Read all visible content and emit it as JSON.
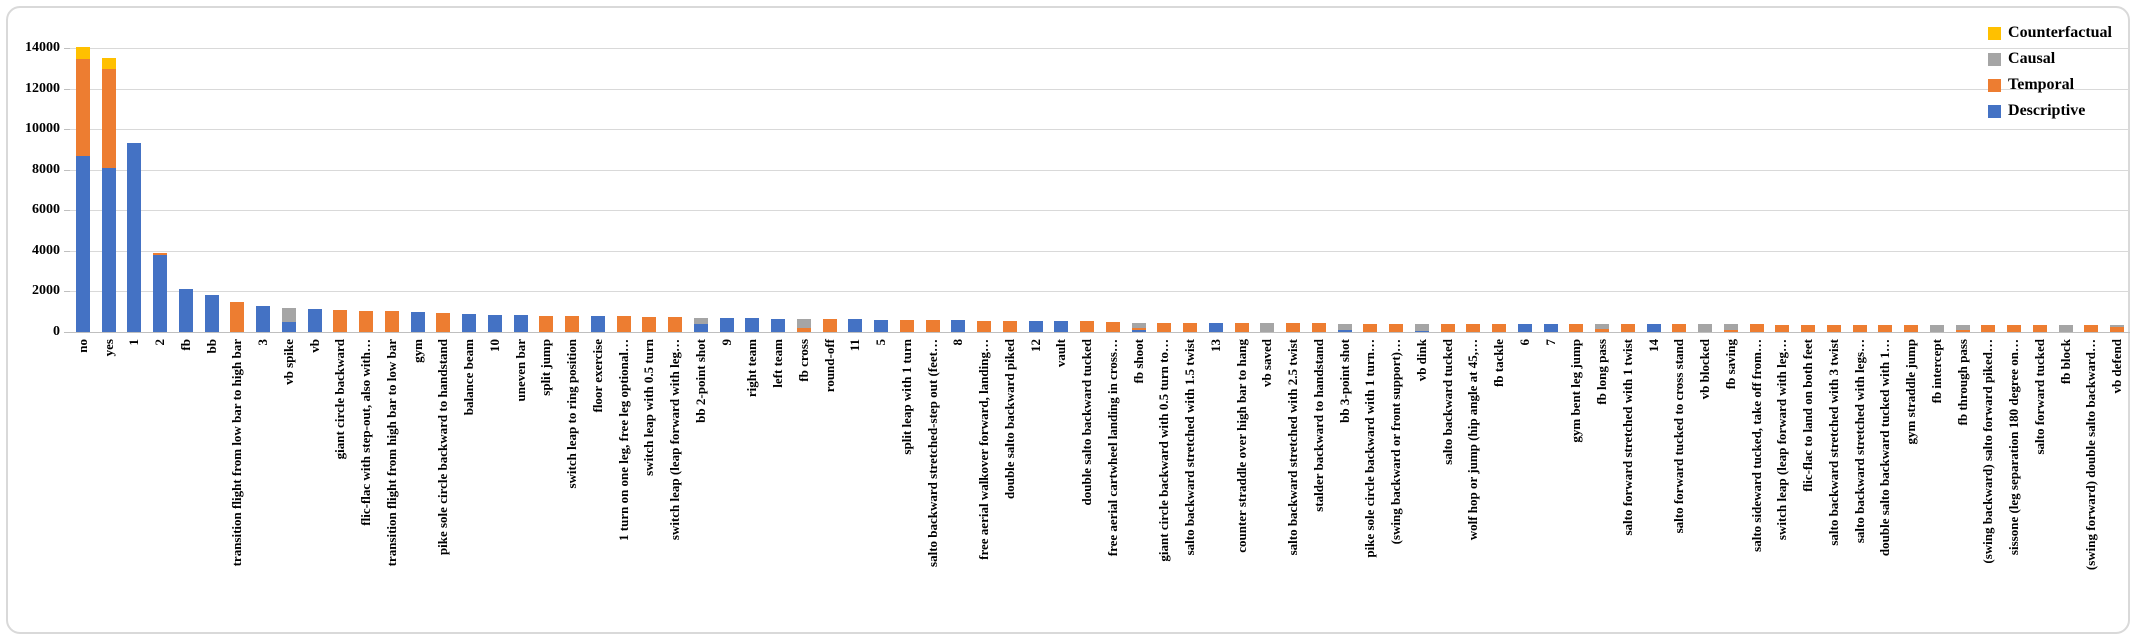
{
  "chart_data": {
    "type": "bar",
    "stacked": true,
    "title": "",
    "xlabel": "",
    "ylabel": "",
    "ylim": [
      0,
      14000
    ],
    "ytick_step": 2000,
    "grid": true,
    "legend": {
      "position": "top-right",
      "order_top_to_bottom": [
        "Counterfactual",
        "Causal",
        "Temporal",
        "Descriptive"
      ]
    },
    "categories": [
      "no",
      "yes",
      "1",
      "2",
      "fb",
      "bb",
      "transition flight from low bar to high bar",
      "3",
      "vb spike",
      "vb",
      "giant circle backward",
      "flic-flac with step-out, also with…",
      "transition flight from high bar to low bar",
      "gym",
      "pike sole circle backward to handstand",
      "balance beam",
      "10",
      "uneven bar",
      "split jump",
      "switch leap to ring position",
      "floor exercise",
      "1 turn on one leg, free leg optional…",
      "switch leap with 0.5 turn",
      "switch leap (leap forward with leg…",
      "bb 2-point shot",
      "9",
      "right team",
      "left team",
      "fb cross",
      "round-off",
      "11",
      "5",
      "split leap with 1 turn",
      "salto backward stretched-step out (feet…",
      "8",
      "free aerial walkover forward, landing…",
      "double salto backward piked",
      "12",
      "vault",
      "double salto backward tucked",
      "free aerial cartwheel landing in cross…",
      "fb shoot",
      "giant circle backward with 0.5 turn to…",
      "salto backward stretched with 1.5 twist",
      "13",
      "counter straddle over high bar to hang",
      "vb saved",
      "salto backward stretched with 2.5 twist",
      "stalder backward to handstand",
      "bb 3-point shot",
      "pike sole circle backward with 1 turn…",
      "(swing backward or front support)…",
      "vb dink",
      "salto backward tucked",
      "wolf hop or jump (hip angle at 45,…",
      "fb tackle",
      "6",
      "7",
      "gym bent leg jump",
      "fb long pass",
      "salto forward stretched with 1 twist",
      "14",
      "salto forward tucked to cross stand",
      "vb blocked",
      "fb saving",
      "salto sideward tucked, take off from…",
      "switch leap (leap forward with leg…",
      "flic-flac to land on both feet",
      "salto backward stretched with 3 twist",
      "salto backward stretched with legs…",
      "double salto backward tucked with 1…",
      "gym straddle jump",
      "fb intercept",
      "fb through pass",
      "(swing backward) salto forward piked…",
      "sissone (leg separation 180 degree on…",
      "salto forward tucked",
      "fb block",
      "(swing forward) double salto backward…",
      "vb defend"
    ],
    "series": [
      {
        "name": "Descriptive",
        "color": "#4472C4",
        "values": [
          8700,
          8100,
          9300,
          3800,
          2100,
          1800,
          0,
          1300,
          500,
          1150,
          0,
          0,
          0,
          1000,
          0,
          900,
          860,
          840,
          0,
          0,
          800,
          0,
          0,
          0,
          400,
          700,
          670,
          660,
          0,
          0,
          620,
          610,
          0,
          0,
          580,
          0,
          0,
          540,
          530,
          0,
          0,
          120,
          0,
          0,
          440,
          0,
          0,
          0,
          0,
          100,
          0,
          0,
          50,
          0,
          0,
          0,
          390,
          390,
          0,
          0,
          0,
          380,
          0,
          0,
          0,
          0,
          0,
          0,
          0,
          0,
          0,
          0,
          0,
          0,
          0,
          0,
          0,
          0,
          0,
          0
        ]
      },
      {
        "name": "Temporal",
        "color": "#ED7D31",
        "values": [
          4750,
          4850,
          0,
          100,
          0,
          0,
          1500,
          0,
          0,
          0,
          1100,
          1050,
          1030,
          0,
          930,
          0,
          0,
          0,
          800,
          790,
          0,
          780,
          760,
          750,
          0,
          0,
          0,
          0,
          200,
          640,
          0,
          0,
          600,
          590,
          0,
          560,
          550,
          0,
          0,
          520,
          510,
          80,
          450,
          440,
          0,
          430,
          0,
          420,
          420,
          0,
          410,
          400,
          0,
          400,
          390,
          390,
          0,
          0,
          380,
          150,
          380,
          0,
          370,
          0,
          120,
          370,
          360,
          360,
          360,
          360,
          350,
          350,
          0,
          100,
          350,
          340,
          340,
          0,
          340,
          250
        ]
      },
      {
        "name": "Causal",
        "color": "#A5A5A5",
        "values": [
          0,
          0,
          0,
          0,
          0,
          0,
          0,
          0,
          700,
          0,
          0,
          0,
          0,
          0,
          0,
          0,
          0,
          0,
          0,
          0,
          0,
          0,
          0,
          0,
          300,
          0,
          0,
          0,
          430,
          0,
          0,
          0,
          0,
          0,
          0,
          0,
          0,
          0,
          0,
          0,
          0,
          250,
          0,
          0,
          0,
          0,
          420,
          0,
          0,
          310,
          0,
          0,
          350,
          0,
          0,
          0,
          0,
          0,
          0,
          230,
          0,
          0,
          0,
          370,
          250,
          0,
          0,
          0,
          0,
          0,
          0,
          0,
          350,
          250,
          0,
          0,
          0,
          340,
          0,
          90
        ]
      },
      {
        "name": "Counterfactual",
        "color": "#FFC000",
        "values": [
          600,
          550,
          0,
          0,
          0,
          0,
          0,
          0,
          0,
          0,
          0,
          0,
          0,
          0,
          0,
          0,
          0,
          0,
          0,
          0,
          0,
          0,
          0,
          0,
          0,
          0,
          0,
          0,
          0,
          0,
          0,
          0,
          0,
          0,
          0,
          0,
          0,
          0,
          0,
          0,
          0,
          0,
          0,
          0,
          0,
          0,
          0,
          0,
          0,
          0,
          0,
          0,
          0,
          0,
          0,
          0,
          0,
          0,
          0,
          0,
          0,
          0,
          0,
          0,
          0,
          0,
          0,
          0,
          0,
          0,
          0,
          0,
          0,
          0,
          0,
          0,
          0,
          0,
          0,
          0
        ]
      }
    ]
  }
}
